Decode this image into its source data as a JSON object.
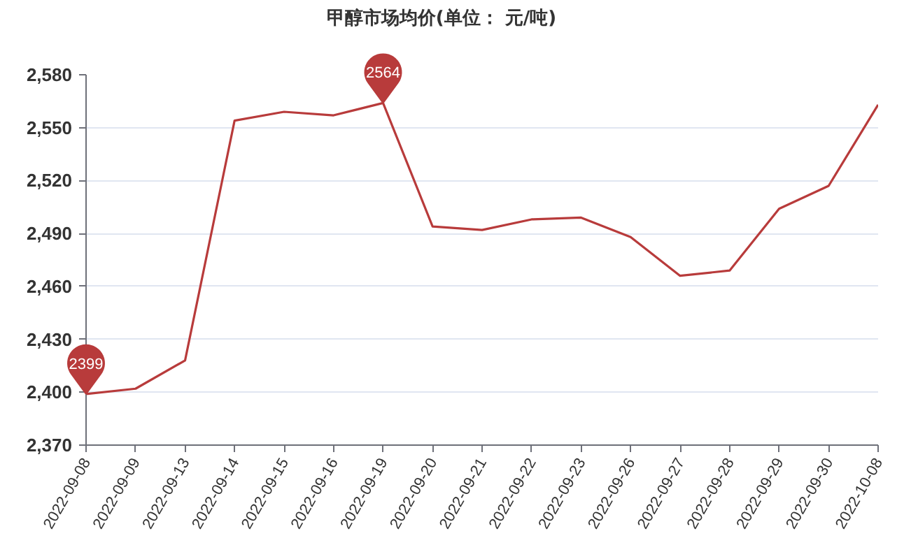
{
  "chart_data": {
    "type": "line",
    "title": "甲醇市场均价(单位： 元/吨)",
    "categories": [
      "2022-09-08",
      "2022-09-09",
      "2022-09-13",
      "2022-09-14",
      "2022-09-15",
      "2022-09-16",
      "2022-09-19",
      "2022-09-20",
      "2022-09-21",
      "2022-09-22",
      "2022-09-23",
      "2022-09-26",
      "2022-09-27",
      "2022-09-28",
      "2022-09-29",
      "2022-09-30",
      "2022-10-08"
    ],
    "series": [
      {
        "color": "#b83b3b",
        "values": [
          2399,
          2402,
          2418,
          2554,
          2559,
          2557,
          2564,
          2494,
          2492,
          2498,
          2499,
          2488,
          2466,
          2469,
          2504,
          2517,
          2563
        ],
        "value_labels": [
          "2399",
          null,
          null,
          null,
          null,
          null,
          "2564",
          null,
          null,
          null,
          null,
          null,
          null,
          null,
          null,
          null,
          null
        ]
      }
    ],
    "ylim": [
      2370,
      2580
    ],
    "yticks": [
      {
        "value": 2370,
        "label": "2,370"
      },
      {
        "value": 2400,
        "label": "2,400"
      },
      {
        "value": 2430,
        "label": "2,430"
      },
      {
        "value": 2460,
        "label": "2,460"
      },
      {
        "value": 2490,
        "label": "2,490"
      },
      {
        "value": 2520,
        "label": "2,520"
      },
      {
        "value": 2550,
        "label": "2,550"
      },
      {
        "value": 2580,
        "label": "2,580"
      }
    ],
    "grid": "y",
    "line_style": "solid"
  }
}
